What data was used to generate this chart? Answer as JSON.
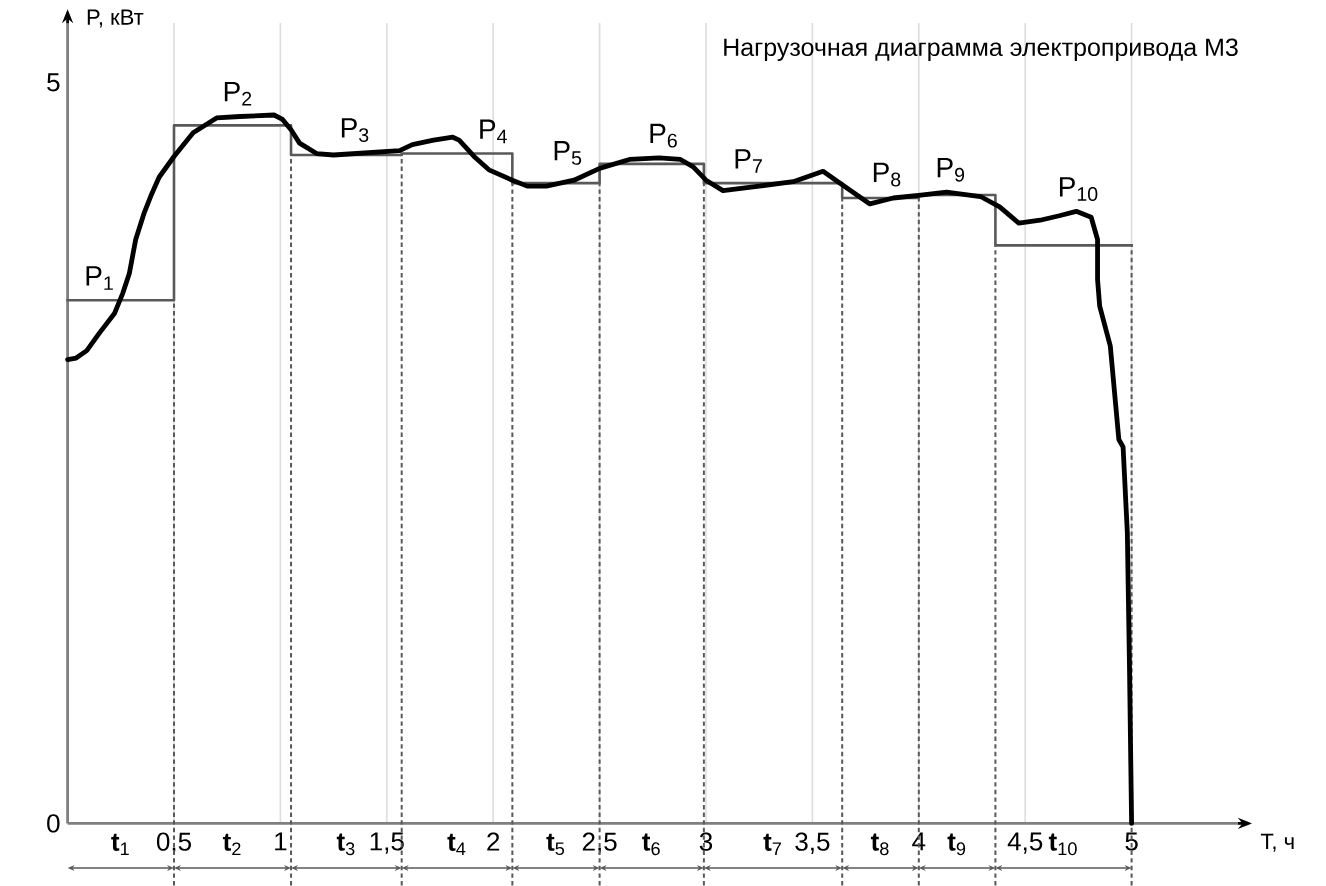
{
  "chart_data": {
    "type": "line",
    "title": "Нагрузочная диаграмма электропривода М3",
    "xlabel": "T, ч",
    "ylabel": "P, кВт",
    "xlim": [
      0,
      5.5
    ],
    "ylim": [
      0,
      5.4
    ],
    "xticks": [
      {
        "value": 0.5,
        "label": "0,5"
      },
      1,
      {
        "value": 1.5,
        "label": "1,5"
      },
      2,
      {
        "value": 2.5,
        "label": "2,5"
      },
      3,
      {
        "value": 3.5,
        "label": "3,5"
      },
      4,
      {
        "value": 4.5,
        "label": "4,5"
      },
      5
    ],
    "yticks": [
      0,
      5
    ],
    "grid": "x",
    "series": [
      {
        "type": "step",
        "color": "#595959",
        "x": [
          0,
          0.5,
          1.05,
          1.57,
          2.09,
          2.5,
          2.99,
          3.64,
          4.0,
          4.36,
          5.0
        ],
        "values": [
          3.53,
          4.71,
          4.51,
          4.52,
          4.32,
          4.45,
          4.32,
          4.22,
          4.24,
          3.9,
          3.9
        ]
      },
      {
        "color": "#000000",
        "x": [
          0.0,
          0.04,
          0.09,
          0.15,
          0.22,
          0.26,
          0.29,
          0.32,
          0.36,
          0.39,
          0.43,
          0.5,
          0.59,
          0.7,
          0.81,
          0.97,
          1.01,
          1.05,
          1.09,
          1.17,
          1.25,
          1.56,
          1.62,
          1.72,
          1.81,
          1.84,
          1.91,
          1.98,
          2.09,
          2.16,
          2.25,
          2.38,
          2.5,
          2.64,
          2.78,
          2.88,
          2.94,
          3.0,
          3.08,
          3.25,
          3.41,
          3.55,
          3.63,
          3.77,
          3.88,
          4.01,
          4.13,
          4.29,
          4.38,
          4.47,
          4.57,
          4.66,
          4.74,
          4.81,
          4.84,
          4.84,
          4.85,
          4.9,
          4.94,
          4.96,
          4.98,
          4.99,
          5.0
        ],
        "values": [
          3.13,
          3.14,
          3.19,
          3.31,
          3.44,
          3.58,
          3.71,
          3.94,
          4.12,
          4.23,
          4.36,
          4.5,
          4.66,
          4.76,
          4.77,
          4.78,
          4.75,
          4.68,
          4.59,
          4.52,
          4.51,
          4.54,
          4.58,
          4.61,
          4.63,
          4.61,
          4.5,
          4.41,
          4.34,
          4.3,
          4.3,
          4.34,
          4.42,
          4.48,
          4.49,
          4.48,
          4.43,
          4.34,
          4.27,
          4.3,
          4.33,
          4.4,
          4.32,
          4.18,
          4.22,
          4.24,
          4.26,
          4.23,
          4.16,
          4.05,
          4.07,
          4.1,
          4.13,
          4.09,
          3.94,
          3.67,
          3.49,
          3.22,
          2.59,
          2.54,
          1.96,
          1.06,
          0
        ]
      }
    ],
    "ref_lines": [
      {
        "axis": "x",
        "value": 1.05,
        "color": "#595959",
        "line_style": "dashed"
      },
      {
        "axis": "x",
        "value": 1.57,
        "color": "#595959",
        "line_style": "dashed"
      },
      {
        "axis": "x",
        "value": 2.09,
        "color": "#595959",
        "line_style": "dashed"
      },
      {
        "axis": "x",
        "value": 3.64,
        "color": "#595959",
        "line_style": "dashed"
      },
      {
        "axis": "x",
        "value": 4.36,
        "color": "#595959",
        "line_style": "dashed"
      }
    ],
    "annotations": [
      {
        "text": "P$_{1}$",
        "x": 0.15,
        "y": 3.53
      },
      {
        "text": "P$_{2}$",
        "x": 0.8,
        "y": 4.71
      },
      {
        "text": "P$_{3}$",
        "x": 1.35,
        "y": 4.51
      },
      {
        "text": "P$_{4}$",
        "x": 2.0,
        "y": 4.52
      },
      {
        "text": "P$_{5}$",
        "x": 2.35,
        "y": 4.32
      },
      {
        "text": "P$_{6}$",
        "x": 2.8,
        "y": 4.45
      },
      {
        "text": "P$_{7}$",
        "x": 3.2,
        "y": 4.32
      },
      {
        "text": "P$_{8}$",
        "x": 3.85,
        "y": 4.22
      },
      {
        "text": "P$_{9}$",
        "x": 4.15,
        "y": 4.24
      },
      {
        "text": "P$_{10}$",
        "x": 4.75,
        "y": 3.9
      },
      "**t**$_{1}$",
      "**t**$_{2}$",
      "**t**$_{3}$",
      "**t**$_{4}$",
      "**t**$_{5}$",
      "**t**$_{6}$",
      "**t**$_{7}$",
      "**t**$_{8}$",
      "**t**$_{9}$",
      "**t**$_{10}$"
    ]
  }
}
